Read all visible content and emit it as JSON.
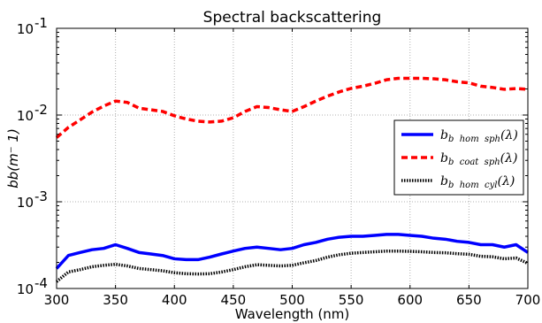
{
  "chart_data": {
    "type": "line",
    "title": "Spectral backscattering",
    "xlabel": "Wavelength (nm)",
    "ylabel": "bb(m⁻ 1)",
    "x_ticks": [
      300,
      350,
      400,
      450,
      500,
      550,
      600,
      650,
      700
    ],
    "x_tick_labels": [
      "300",
      "350",
      "400",
      "450",
      "500",
      "550",
      "600",
      "650",
      "700"
    ],
    "y_scale": "log",
    "y_ticks": [
      0.0001,
      0.001,
      0.01,
      0.1
    ],
    "y_tick_labels": [
      {
        "base": "10",
        "exp": "-4"
      },
      {
        "base": "10",
        "exp": "-3"
      },
      {
        "base": "10",
        "exp": "-2"
      },
      {
        "base": "10",
        "exp": "-1"
      }
    ],
    "xlim": [
      300,
      700
    ],
    "ylim": [
      0.0001,
      0.1
    ],
    "grid": true,
    "legend_position": "center-right",
    "series": [
      {
        "name": "b_b hom sph(λ)",
        "label_main": "b",
        "label_sub": "b  hom  sph",
        "label_suffix": "(λ)",
        "color": "#0000ff",
        "style": "solid",
        "x": [
          300,
          310,
          320,
          330,
          340,
          350,
          360,
          370,
          380,
          390,
          400,
          410,
          420,
          430,
          440,
          450,
          460,
          470,
          480,
          490,
          500,
          510,
          520,
          530,
          540,
          550,
          560,
          570,
          580,
          590,
          600,
          610,
          620,
          630,
          640,
          650,
          660,
          670,
          680,
          690,
          700
        ],
        "y": [
          0.00017,
          0.00024,
          0.00026,
          0.00028,
          0.00029,
          0.00032,
          0.00029,
          0.00026,
          0.00025,
          0.00024,
          0.00022,
          0.000215,
          0.000215,
          0.00023,
          0.00025,
          0.00027,
          0.00029,
          0.0003,
          0.00029,
          0.00028,
          0.00029,
          0.00032,
          0.00034,
          0.00037,
          0.00039,
          0.0004,
          0.0004,
          0.00041,
          0.00042,
          0.00042,
          0.00041,
          0.0004,
          0.00038,
          0.00037,
          0.00035,
          0.00034,
          0.00032,
          0.00032,
          0.0003,
          0.00032,
          0.00026
        ]
      },
      {
        "name": "b_b coat sph(λ)",
        "label_main": "b",
        "label_sub": "b  coat  sph",
        "label_suffix": "(λ)",
        "color": "#ff0000",
        "style": "dashed",
        "x": [
          300,
          310,
          320,
          330,
          340,
          350,
          360,
          370,
          380,
          390,
          400,
          410,
          420,
          430,
          440,
          450,
          460,
          470,
          480,
          490,
          500,
          510,
          520,
          530,
          540,
          550,
          560,
          570,
          580,
          590,
          600,
          610,
          620,
          630,
          640,
          650,
          660,
          670,
          680,
          690,
          700
        ],
        "y": [
          0.0055,
          0.0072,
          0.0088,
          0.0108,
          0.0127,
          0.0145,
          0.014,
          0.012,
          0.0115,
          0.011,
          0.0098,
          0.009,
          0.0085,
          0.0083,
          0.0085,
          0.0093,
          0.011,
          0.0125,
          0.0122,
          0.0115,
          0.011,
          0.0125,
          0.0145,
          0.0165,
          0.0185,
          0.0203,
          0.0215,
          0.0232,
          0.0255,
          0.0265,
          0.0265,
          0.0265,
          0.0262,
          0.0255,
          0.0242,
          0.0235,
          0.0215,
          0.0208,
          0.0198,
          0.0202,
          0.0198
        ]
      },
      {
        "name": "b_b hom cyl(λ)",
        "label_main": "b",
        "label_sub": "b  hom  cyl",
        "label_suffix": "(λ)",
        "color": "#000000",
        "style": "dotted",
        "x": [
          300,
          310,
          320,
          330,
          340,
          350,
          360,
          370,
          380,
          390,
          400,
          410,
          420,
          430,
          440,
          450,
          460,
          470,
          480,
          490,
          500,
          510,
          520,
          530,
          540,
          550,
          560,
          570,
          580,
          590,
          600,
          610,
          620,
          630,
          640,
          650,
          660,
          670,
          680,
          690,
          700
        ],
        "y": [
          0.00012,
          0.000155,
          0.000165,
          0.000178,
          0.000185,
          0.00019,
          0.000182,
          0.00017,
          0.000165,
          0.00016,
          0.000152,
          0.000148,
          0.000147,
          0.000148,
          0.000155,
          0.000165,
          0.000178,
          0.000188,
          0.000185,
          0.000182,
          0.000185,
          0.000198,
          0.00021,
          0.00023,
          0.000245,
          0.000255,
          0.00026,
          0.000265,
          0.00027,
          0.00027,
          0.000268,
          0.000265,
          0.00026,
          0.000258,
          0.000252,
          0.000248,
          0.000235,
          0.000232,
          0.00022,
          0.000225,
          0.000195
        ]
      }
    ]
  }
}
